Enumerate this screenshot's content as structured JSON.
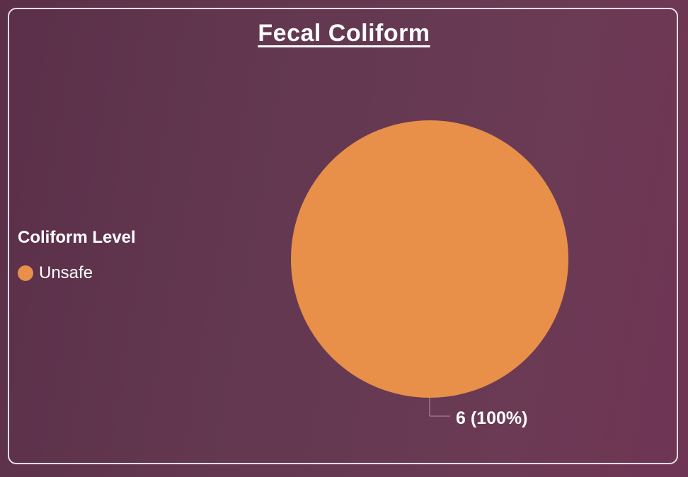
{
  "chart_data": {
    "type": "pie",
    "title": "Fecal Coliform",
    "legend_title": "Coliform Level",
    "legend_position": "left",
    "categories": [
      "Unsafe"
    ],
    "values": [
      6
    ],
    "percents": [
      "100%"
    ],
    "data_labels": [
      "6 (100%)"
    ],
    "colors": [
      "#e8904a"
    ]
  }
}
